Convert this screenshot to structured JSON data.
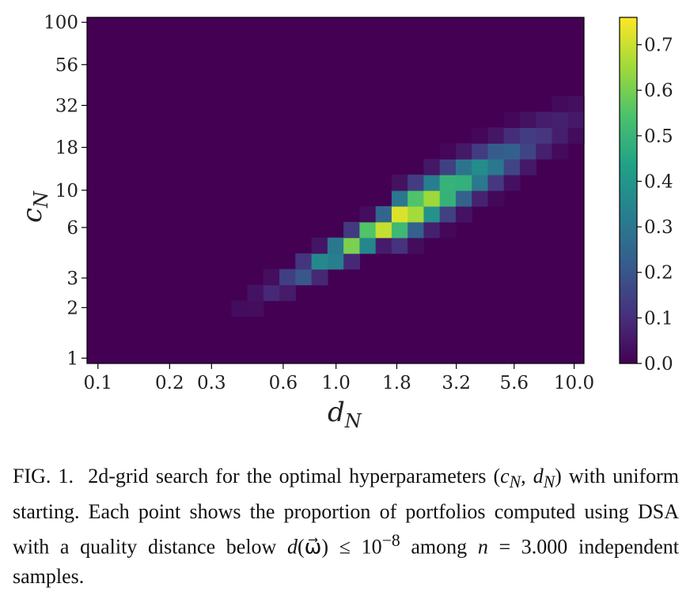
{
  "chart_data": {
    "type": "heatmap",
    "xlabel": "d",
    "xlabel_sub": "N",
    "ylabel": "c",
    "ylabel_sub": "N",
    "x_ticks": [
      "0.1",
      "0.2",
      "0.3",
      "0.6",
      "1.0",
      "1.8",
      "3.2",
      "5.6",
      "10.0"
    ],
    "y_ticks": [
      "1",
      "2",
      "3",
      "6",
      "10",
      "18",
      "32",
      "56",
      "100"
    ],
    "colorbar_ticks": [
      "0.0",
      "0.1",
      "0.2",
      "0.3",
      "0.4",
      "0.5",
      "0.6",
      "0.7"
    ],
    "colorbar_range": [
      0,
      0.76
    ],
    "colormap": "viridis",
    "peak_value": 0.75,
    "peak_at": {
      "d_N": 1.8,
      "c_N": 6
    }
  },
  "caption": {
    "label": "FIG. 1.",
    "text_1": "2d-grid search for the optimal hyperparameters (",
    "math_cn": "c",
    "sub_n": "N",
    "sep": ", ",
    "math_dn": "d",
    "text_2": ") with uniform starting. Each point shows the proportion of portfolios computed using DSA with a quality distance below ",
    "math_d": "d",
    "omega": "(ω⃗) ≤ 10",
    "exponent": "−8",
    "text_3": " among ",
    "math_n": "n",
    "text_4": " = 3.000 independent samples."
  }
}
